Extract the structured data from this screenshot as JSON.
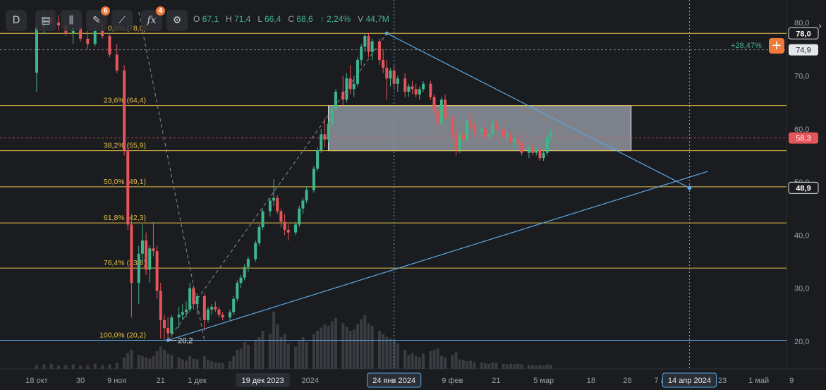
{
  "toolbar": {
    "timeframe": "D",
    "badge_a": "6",
    "badge_b": "4"
  },
  "ohlc": {
    "o_label": "O",
    "o": "67,1",
    "h_label": "H",
    "h": "71,4",
    "l_label": "L",
    "l": "66,4",
    "c_label": "C",
    "c": "68,6",
    "change": "↑ 2,24%",
    "v_label": "V",
    "v": "44,7M"
  },
  "header_right": {
    "pct_change": "+28,47%"
  },
  "colors": {
    "background": "#1b1c20",
    "up": "#3fb68b",
    "down": "#e5555a",
    "fib": "#e2bf4a",
    "trendline": "#5aa9e6",
    "volume": "#3a3c42"
  },
  "chart_data": {
    "type": "candlestick",
    "ylim": [
      15,
      83
    ],
    "y_ticks": [
      {
        "value": 80,
        "label": "80,0"
      },
      {
        "value": 70,
        "label": "70,0"
      },
      {
        "value": 60,
        "label": "60,0"
      },
      {
        "value": 50,
        "label": "50,0"
      },
      {
        "value": 40,
        "label": "40,0"
      },
      {
        "value": 30,
        "label": "30,0"
      },
      {
        "value": 20,
        "label": "20,0"
      }
    ],
    "x_ticks": [
      {
        "day": 0,
        "label": "18 окт"
      },
      {
        "day": 12,
        "label": "30"
      },
      {
        "day": 22,
        "label": "9 ноя"
      },
      {
        "day": 34,
        "label": "21"
      },
      {
        "day": 44,
        "label": "1 дек"
      },
      {
        "day": 62,
        "label": "19 дек 2023",
        "highlight": true
      },
      {
        "day": 75,
        "label": "2024"
      },
      {
        "day": 98,
        "label": "24 янв 2024",
        "highlight": true
      },
      {
        "day": 114,
        "label": "9 фев"
      },
      {
        "day": 126,
        "label": "21"
      },
      {
        "day": 139,
        "label": "5 мар"
      },
      {
        "day": 152,
        "label": "18"
      },
      {
        "day": 162,
        "label": "28"
      },
      {
        "day": 172,
        "label": "7 апр"
      },
      {
        "day": 179,
        "label": "14 апр 2024",
        "highlight": true
      },
      {
        "day": 188,
        "label": "23"
      },
      {
        "day": 198,
        "label": "1 май"
      },
      {
        "day": 207,
        "label": "9"
      }
    ],
    "fibonacci": [
      {
        "level": "0,0%",
        "price": 78.0,
        "label": "0,0% (78,0)"
      },
      {
        "level": "23,6%",
        "price": 64.4,
        "label": "23,6% (64,4)"
      },
      {
        "level": "38,2%",
        "price": 55.9,
        "label": "38,2% (55,9)"
      },
      {
        "level": "50,0%",
        "price": 49.1,
        "label": "50,0% (49,1)"
      },
      {
        "level": "61,8%",
        "price": 42.3,
        "label": "61,8% (42,3)"
      },
      {
        "level": "76,4%",
        "price": 33.8,
        "label": "76,4% (33,8)"
      },
      {
        "level": "100,0%",
        "price": 20.2,
        "label": "100,0% (20,2)"
      }
    ],
    "low_marker": {
      "day": 36,
      "price": 20.2,
      "label": "20,2"
    },
    "rectangle": {
      "day_start": 80,
      "day_end": 163,
      "price_top": 64.4,
      "price_bottom": 55.9
    },
    "trendlines": [
      {
        "from": {
          "day": 96,
          "price": 78.0
        },
        "to": {
          "day": 179,
          "price": 48.9
        }
      },
      {
        "from": {
          "day": 36,
          "price": 20.2
        },
        "to": {
          "day": 184,
          "price": 52.0
        }
      }
    ],
    "price_tags": [
      {
        "price": 78.0,
        "label": "78,0",
        "style": "outline"
      },
      {
        "price": 74.9,
        "label": "74,9",
        "style": "grey"
      },
      {
        "price": 58.3,
        "label": "58,3",
        "style": "red"
      },
      {
        "price": 48.9,
        "label": "48,9",
        "style": "outline"
      }
    ],
    "reference_lines": [
      {
        "price": 74.9,
        "color": "#9aa0aa",
        "dashed": true
      },
      {
        "price": 58.3,
        "color": "#e5555a",
        "dashed": true
      }
    ],
    "crosshair_days": [
      98,
      179
    ],
    "candles": [
      [
        0,
        70.6,
        80.0,
        67.0,
        79.2
      ],
      [
        2,
        79.2,
        82.0,
        78.0,
        81.0
      ],
      [
        4,
        81.0,
        82.5,
        78.5,
        80.0
      ],
      [
        6,
        80.0,
        81.5,
        78.5,
        79.5
      ],
      [
        8,
        79.5,
        81.0,
        77.5,
        78.0
      ],
      [
        10,
        78.0,
        80.0,
        76.0,
        79.0
      ],
      [
        12,
        79.0,
        81.0,
        76.5,
        77.0
      ],
      [
        14,
        77.0,
        78.5,
        75.0,
        76.0
      ],
      [
        16,
        76.0,
        79.0,
        75.5,
        78.5
      ],
      [
        18,
        78.5,
        80.5,
        77.0,
        77.5
      ],
      [
        20,
        77.5,
        78.0,
        73.5,
        74.0
      ],
      [
        22,
        74.0,
        76.0,
        70.5,
        71.0
      ],
      [
        24,
        71.0,
        72.0,
        55.0,
        56.0
      ],
      [
        25,
        56.0,
        57.0,
        41.0,
        42.0
      ],
      [
        26,
        42.0,
        44.0,
        24.5,
        31.0
      ],
      [
        28,
        31.0,
        38.0,
        27.0,
        36.5
      ],
      [
        29,
        36.5,
        42.0,
        35.0,
        39.0
      ],
      [
        30,
        39.0,
        40.5,
        32.5,
        33.5
      ],
      [
        31,
        33.5,
        38.0,
        31.0,
        37.5
      ],
      [
        32,
        37.5,
        42.5,
        36.0,
        37.0
      ],
      [
        33,
        37.0,
        38.0,
        28.0,
        29.5
      ],
      [
        34,
        29.5,
        31.0,
        20.5,
        24.0
      ],
      [
        35,
        24.0,
        25.0,
        20.2,
        22.5
      ],
      [
        36,
        22.5,
        24.5,
        20.2,
        21.5
      ],
      [
        37,
        21.5,
        25.0,
        20.8,
        24.5
      ],
      [
        39,
        24.5,
        26.5,
        22.5,
        25.0
      ],
      [
        40,
        25.0,
        27.0,
        24.0,
        25.5
      ],
      [
        41,
        25.5,
        27.5,
        24.5,
        26.0
      ],
      [
        42,
        26.0,
        31.0,
        25.5,
        30.0
      ],
      [
        43,
        30.0,
        30.5,
        26.0,
        27.0
      ],
      [
        44,
        27.0,
        29.0,
        25.0,
        28.5
      ],
      [
        46,
        28.5,
        29.0,
        22.0,
        24.0
      ],
      [
        47,
        24.0,
        26.5,
        23.5,
        26.0
      ],
      [
        48,
        26.0,
        27.0,
        25.0,
        26.5
      ],
      [
        49,
        26.5,
        27.5,
        25.5,
        26.0
      ],
      [
        50,
        26.0,
        26.5,
        24.5,
        25.0
      ],
      [
        51,
        25.0,
        25.5,
        24.0,
        24.5
      ],
      [
        53,
        24.5,
        26.0,
        24.0,
        25.5
      ],
      [
        54,
        25.5,
        28.5,
        25.0,
        28.0
      ],
      [
        55,
        28.0,
        31.5,
        27.5,
        31.0
      ],
      [
        56,
        31.0,
        32.5,
        30.0,
        32.0
      ],
      [
        57,
        32.0,
        34.5,
        31.5,
        34.0
      ],
      [
        58,
        34.0,
        36.0,
        33.0,
        35.5
      ],
      [
        60,
        35.5,
        39.0,
        35.0,
        38.5
      ],
      [
        61,
        38.5,
        42.0,
        38.0,
        41.5
      ],
      [
        62,
        41.5,
        45.0,
        41.0,
        44.5
      ],
      [
        64,
        44.5,
        47.0,
        43.5,
        46.5
      ],
      [
        65,
        46.5,
        50.5,
        45.5,
        47.0
      ],
      [
        66,
        47.0,
        47.5,
        44.0,
        44.5
      ],
      [
        67,
        44.5,
        45.0,
        41.5,
        42.5
      ],
      [
        68,
        42.5,
        44.0,
        40.0,
        41.0
      ],
      [
        69,
        41.0,
        42.0,
        39.0,
        40.5
      ],
      [
        71,
        40.5,
        42.5,
        40.0,
        42.0
      ],
      [
        72,
        42.0,
        45.5,
        41.5,
        45.0
      ],
      [
        73,
        45.0,
        47.0,
        44.0,
        46.5
      ],
      [
        74,
        46.5,
        49.0,
        46.0,
        48.5
      ],
      [
        76,
        48.5,
        53.0,
        48.0,
        52.5
      ],
      [
        77,
        52.5,
        56.5,
        52.0,
        56.0
      ],
      [
        78,
        56.0,
        60.0,
        55.5,
        59.0
      ],
      [
        79,
        59.0,
        62.0,
        56.5,
        58.0
      ],
      [
        80,
        58.0,
        61.5,
        57.5,
        61.0
      ],
      [
        81,
        61.0,
        64.5,
        60.5,
        64.0
      ],
      [
        82,
        64.0,
        67.5,
        63.5,
        67.0
      ],
      [
        84,
        67.0,
        70.0,
        64.5,
        65.5
      ],
      [
        85,
        65.5,
        70.5,
        65.0,
        69.5
      ],
      [
        86,
        69.5,
        72.0,
        66.5,
        67.5
      ],
      [
        87,
        67.5,
        70.0,
        66.0,
        68.5
      ],
      [
        88,
        68.5,
        73.5,
        68.0,
        73.0
      ],
      [
        89,
        73.0,
        76.0,
        72.0,
        75.5
      ],
      [
        90,
        75.5,
        78.0,
        74.5,
        77.5
      ],
      [
        91,
        77.5,
        78.0,
        73.5,
        74.5
      ],
      [
        92,
        74.5,
        77.0,
        73.0,
        76.5
      ],
      [
        94,
        76.5,
        77.0,
        72.0,
        73.0
      ],
      [
        95,
        73.0,
        75.0,
        70.5,
        71.5
      ],
      [
        96,
        71.5,
        73.0,
        65.5,
        69.5
      ],
      [
        97,
        69.5,
        71.5,
        68.0,
        71.0
      ],
      [
        98,
        71.0,
        72.0,
        67.5,
        68.5
      ],
      [
        99,
        68.5,
        70.0,
        67.0,
        69.5
      ],
      [
        101,
        69.5,
        70.5,
        66.0,
        67.0
      ],
      [
        102,
        67.0,
        68.5,
        66.0,
        68.0
      ],
      [
        103,
        68.0,
        69.0,
        66.5,
        67.5
      ],
      [
        104,
        67.5,
        68.5,
        66.0,
        66.5
      ],
      [
        105,
        66.5,
        68.0,
        65.5,
        67.5
      ],
      [
        106,
        67.5,
        69.0,
        67.0,
        68.5
      ],
      [
        108,
        68.5,
        69.0,
        65.5,
        66.0
      ],
      [
        109,
        66.0,
        66.5,
        63.0,
        63.5
      ],
      [
        110,
        63.5,
        64.5,
        60.0,
        61.0
      ],
      [
        111,
        61.0,
        66.0,
        60.5,
        65.5
      ],
      [
        112,
        65.5,
        66.5,
        61.5,
        62.0
      ],
      [
        114,
        62.0,
        62.5,
        58.5,
        59.0
      ],
      [
        115,
        59.0,
        60.0,
        55.0,
        56.0
      ],
      [
        116,
        56.0,
        59.5,
        55.5,
        59.0
      ],
      [
        117,
        59.0,
        60.5,
        57.5,
        58.0
      ],
      [
        118,
        58.0,
        62.0,
        57.5,
        61.5
      ],
      [
        119,
        61.5,
        63.0,
        60.0,
        60.5
      ],
      [
        120,
        60.5,
        61.0,
        58.5,
        59.5
      ],
      [
        122,
        59.5,
        60.5,
        58.5,
        60.0
      ],
      [
        123,
        60.0,
        61.0,
        58.0,
        58.5
      ],
      [
        124,
        58.5,
        59.5,
        58.0,
        59.0
      ],
      [
        125,
        59.0,
        61.5,
        58.5,
        61.0
      ],
      [
        126,
        61.0,
        61.5,
        59.5,
        60.0
      ],
      [
        128,
        60.0,
        60.5,
        58.0,
        58.5
      ],
      [
        129,
        58.5,
        59.5,
        57.5,
        59.0
      ],
      [
        130,
        59.0,
        59.5,
        57.0,
        57.5
      ],
      [
        131,
        57.5,
        58.5,
        56.5,
        58.0
      ],
      [
        132,
        58.0,
        59.0,
        57.0,
        57.5
      ],
      [
        133,
        57.5,
        57.5,
        55.0,
        55.5
      ],
      [
        135,
        55.5,
        57.0,
        54.5,
        56.5
      ],
      [
        136,
        56.5,
        57.5,
        55.0,
        55.5
      ],
      [
        137,
        55.5,
        56.5,
        55.0,
        56.0
      ],
      [
        138,
        56.0,
        56.5,
        54.0,
        54.5
      ],
      [
        139,
        54.5,
        56.0,
        54.0,
        55.5
      ],
      [
        140,
        55.5,
        59.0,
        55.0,
        58.5
      ],
      [
        141,
        58.5,
        60.0,
        57.5,
        59.5
      ]
    ],
    "volume": [
      [
        0,
        0.06
      ],
      [
        2,
        0.07
      ],
      [
        4,
        0.08
      ],
      [
        6,
        0.05
      ],
      [
        8,
        0.06
      ],
      [
        10,
        0.07
      ],
      [
        12,
        0.05
      ],
      [
        14,
        0.06
      ],
      [
        16,
        0.08
      ],
      [
        18,
        0.06
      ],
      [
        20,
        0.07
      ],
      [
        22,
        0.09
      ],
      [
        24,
        0.18
      ],
      [
        25,
        0.25
      ],
      [
        26,
        0.3
      ],
      [
        28,
        0.22
      ],
      [
        29,
        0.2
      ],
      [
        30,
        0.18
      ],
      [
        31,
        0.16
      ],
      [
        32,
        0.2
      ],
      [
        33,
        0.28
      ],
      [
        34,
        0.35
      ],
      [
        35,
        0.3
      ],
      [
        36,
        0.24
      ],
      [
        37,
        0.22
      ],
      [
        39,
        0.18
      ],
      [
        40,
        0.15
      ],
      [
        41,
        0.13
      ],
      [
        42,
        0.2
      ],
      [
        43,
        0.16
      ],
      [
        44,
        0.15
      ],
      [
        46,
        0.2
      ],
      [
        47,
        0.14
      ],
      [
        48,
        0.12
      ],
      [
        49,
        0.1
      ],
      [
        50,
        0.1
      ],
      [
        51,
        0.09
      ],
      [
        53,
        0.12
      ],
      [
        54,
        0.2
      ],
      [
        55,
        0.3
      ],
      [
        56,
        0.32
      ],
      [
        57,
        0.42
      ],
      [
        58,
        0.38
      ],
      [
        60,
        0.45
      ],
      [
        61,
        0.5
      ],
      [
        62,
        0.6
      ],
      [
        64,
        0.55
      ],
      [
        65,
        0.9
      ],
      [
        66,
        0.7
      ],
      [
        67,
        0.5
      ],
      [
        68,
        0.55
      ],
      [
        69,
        0.4
      ],
      [
        71,
        0.35
      ],
      [
        72,
        0.45
      ],
      [
        73,
        0.5
      ],
      [
        74,
        0.42
      ],
      [
        76,
        0.55
      ],
      [
        77,
        0.6
      ],
      [
        78,
        0.65
      ],
      [
        79,
        0.7
      ],
      [
        80,
        0.68
      ],
      [
        81,
        0.75
      ],
      [
        82,
        0.8
      ],
      [
        84,
        0.72
      ],
      [
        85,
        0.66
      ],
      [
        86,
        0.6
      ],
      [
        87,
        0.62
      ],
      [
        88,
        0.7
      ],
      [
        89,
        0.78
      ],
      [
        90,
        0.85
      ],
      [
        91,
        0.72
      ],
      [
        92,
        0.68
      ],
      [
        94,
        0.6
      ],
      [
        95,
        0.55
      ],
      [
        96,
        0.5
      ],
      [
        97,
        0.48
      ],
      [
        98,
        0.45
      ],
      [
        99,
        0.4
      ],
      [
        101,
        0.3
      ],
      [
        102,
        0.22
      ],
      [
        103,
        0.25
      ],
      [
        104,
        0.2
      ],
      [
        105,
        0.18
      ],
      [
        106,
        0.24
      ],
      [
        108,
        0.28
      ],
      [
        109,
        0.3
      ],
      [
        110,
        0.32
      ],
      [
        111,
        0.2
      ],
      [
        112,
        0.18
      ],
      [
        114,
        0.22
      ],
      [
        115,
        0.26
      ],
      [
        116,
        0.15
      ],
      [
        117,
        0.14
      ],
      [
        118,
        0.12
      ],
      [
        119,
        0.13
      ],
      [
        120,
        0.1
      ],
      [
        122,
        0.1
      ],
      [
        123,
        0.09
      ],
      [
        124,
        0.08
      ],
      [
        125,
        0.1
      ],
      [
        126,
        0.09
      ],
      [
        128,
        0.08
      ],
      [
        129,
        0.07
      ],
      [
        130,
        0.08
      ],
      [
        131,
        0.07
      ],
      [
        132,
        0.08
      ],
      [
        133,
        0.07
      ],
      [
        135,
        0.06
      ],
      [
        136,
        0.06
      ],
      [
        137,
        0.05
      ],
      [
        138,
        0.06
      ],
      [
        139,
        0.05
      ],
      [
        140,
        0.07
      ],
      [
        141,
        0.06
      ]
    ]
  }
}
